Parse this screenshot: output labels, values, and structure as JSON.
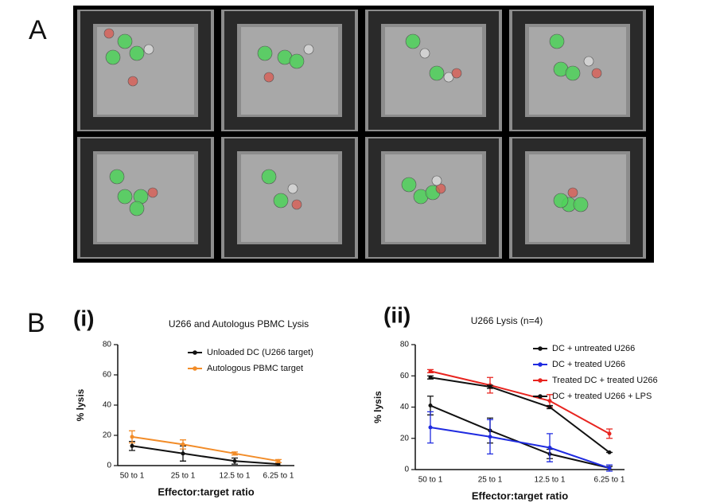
{
  "panel_labels": [
    "A",
    "B"
  ],
  "chart_data": [
    {
      "type": "line",
      "panel_label": "(i)",
      "title": "U266 and Autologus PBMC Lysis",
      "y_label": "% lysis",
      "x_label": "Effector:target ratio",
      "categories": [
        "50 to 1",
        "25 to 1",
        "12.5 to 1",
        "6.25 to 1"
      ],
      "ylim": [
        0,
        80
      ],
      "yticks": [
        0,
        20,
        40,
        60,
        80
      ],
      "series": [
        {
          "name": "Unloaded DC (U266 target)",
          "color": "#111111",
          "values": [
            13,
            8,
            3,
            1
          ],
          "errors": [
            3,
            5,
            2,
            1
          ]
        },
        {
          "name": "Autologous PBMC target",
          "color": "#f28c28",
          "values": [
            19,
            14,
            8,
            3
          ],
          "errors": [
            4,
            3,
            1,
            1
          ]
        }
      ]
    },
    {
      "type": "line",
      "panel_label": "(ii)",
      "title": "U266 Lysis (n=4)",
      "y_label": "% lysis",
      "x_label": "Effector:target ratio",
      "categories": [
        "50 to 1",
        "25 to 1",
        "12.5 to 1",
        "6.25 to 1"
      ],
      "ylim": [
        0,
        80
      ],
      "yticks": [
        0,
        20,
        40,
        60,
        80
      ],
      "series": [
        {
          "name": "DC + untreated U266",
          "color": "#111111",
          "values": [
            41,
            25,
            10,
            1
          ],
          "errors": [
            6,
            8,
            3,
            1
          ]
        },
        {
          "name": "DC + treated U266",
          "color": "#1f2be0",
          "values": [
            27,
            21,
            14,
            1
          ],
          "errors": [
            10,
            11,
            9,
            2
          ]
        },
        {
          "name": "Treated DC + treated U266",
          "color": "#e8241f",
          "values": [
            63,
            54,
            44,
            23
          ],
          "errors": [
            1,
            5,
            4,
            3
          ]
        },
        {
          "name": "DC + treated U266 + LPS",
          "color": "#111111",
          "values": [
            59,
            53,
            40,
            11
          ],
          "errors": [
            1,
            1,
            1,
            0
          ]
        }
      ]
    }
  ]
}
